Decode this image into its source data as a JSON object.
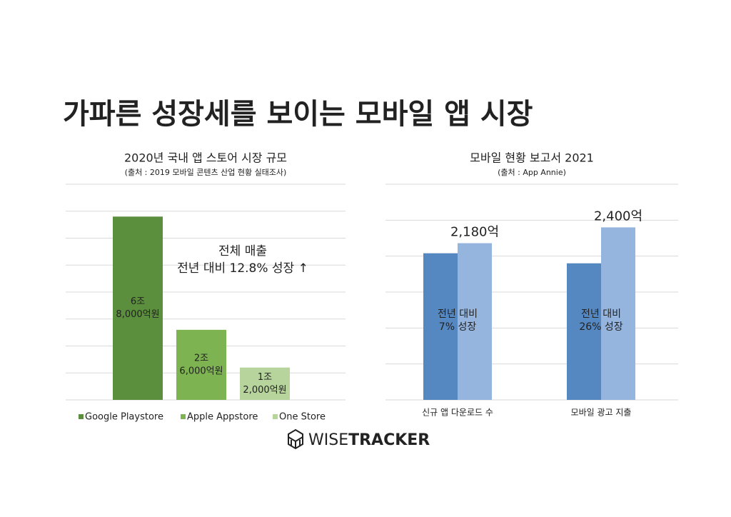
{
  "title": "가파른 성장세를 보이는 모바일 앱 시장",
  "logo": {
    "light": "WISE",
    "bold": "TRACKER"
  },
  "chart_data": [
    {
      "type": "bar",
      "title": "2020년 국내 앱 스토어 시장 규모",
      "subtitle": "(출처 : 2019 모바일 콘텐츠 산업 현황 실태조사)",
      "series": [
        {
          "name": "Google Playstore",
          "color": "#5b8f3d",
          "values": [
            68000
          ],
          "value_labels": [
            [
              "6조",
              "8,000억원"
            ]
          ]
        },
        {
          "name": "Apple Appstore",
          "color": "#7db350",
          "values": [
            26000
          ],
          "value_labels": [
            [
              "2조",
              "6,000억원"
            ]
          ]
        },
        {
          "name": "One Store",
          "color": "#b7d49d",
          "values": [
            12000
          ],
          "value_labels": [
            [
              "1조",
              "2,000억원"
            ]
          ]
        }
      ],
      "annotation": [
        "전체 매출",
        "전년 대비 12.8% 성장 ↑"
      ],
      "ylim": [
        0,
        80000
      ],
      "yticks": [
        0,
        10000,
        20000,
        30000,
        40000,
        50000,
        60000,
        70000,
        80000
      ],
      "tick_labels": false,
      "grid": true,
      "legend": "bottom"
    },
    {
      "type": "grouped-bar",
      "title": "모바일 현황 보고서 2021",
      "subtitle": "(출처 : App Annie)",
      "categories": [
        "신규 앱 다운로드 수",
        "모바일 광고 지출"
      ],
      "series": [
        {
          "color": "#5587c1",
          "values": [
            2040,
            1900
          ]
        },
        {
          "color": "#95b5de",
          "values": [
            2180,
            2400
          ],
          "value_labels": [
            "2,180억",
            "2,400억"
          ]
        }
      ],
      "bar_annotations": [
        [
          "전년 대비",
          "7% 성장"
        ],
        [
          "전년 대비",
          "26% 성장"
        ]
      ],
      "ylim": [
        0,
        3000
      ],
      "yticks": [
        0,
        500,
        1000,
        1500,
        2000,
        2500,
        3000
      ],
      "tick_labels": false,
      "grid": true
    }
  ]
}
